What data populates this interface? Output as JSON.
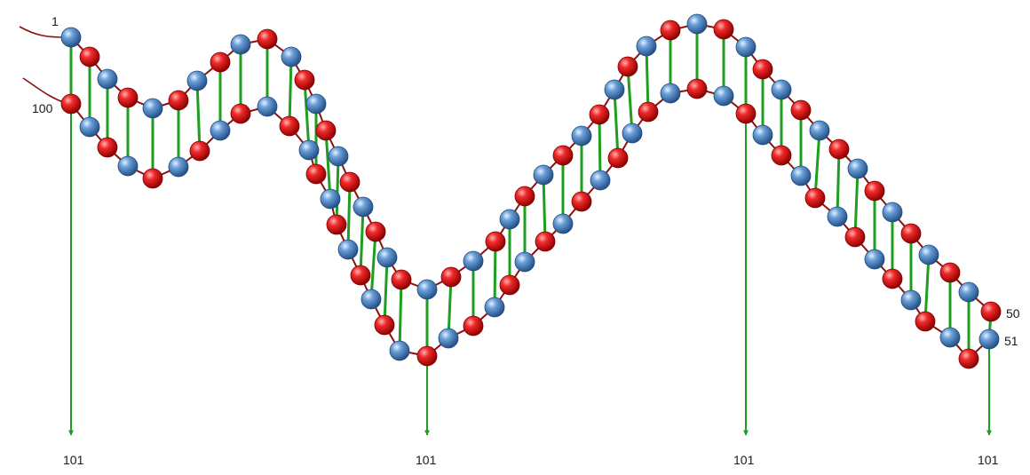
{
  "diagram": {
    "end_labels": {
      "top_start": "1",
      "bottom_start": "100",
      "top_end": "50",
      "bottom_end": "51"
    },
    "arrow_labels": [
      "101",
      "101",
      "101",
      "101"
    ]
  },
  "colors": {
    "strand_a_bead": "#d81a1a",
    "strand_b_bead": "#4a86c5",
    "backbone": "#8b1010",
    "rungs": "#1e9e1e",
    "arrows": "#1e9e1e",
    "tails": "#8b1010"
  }
}
